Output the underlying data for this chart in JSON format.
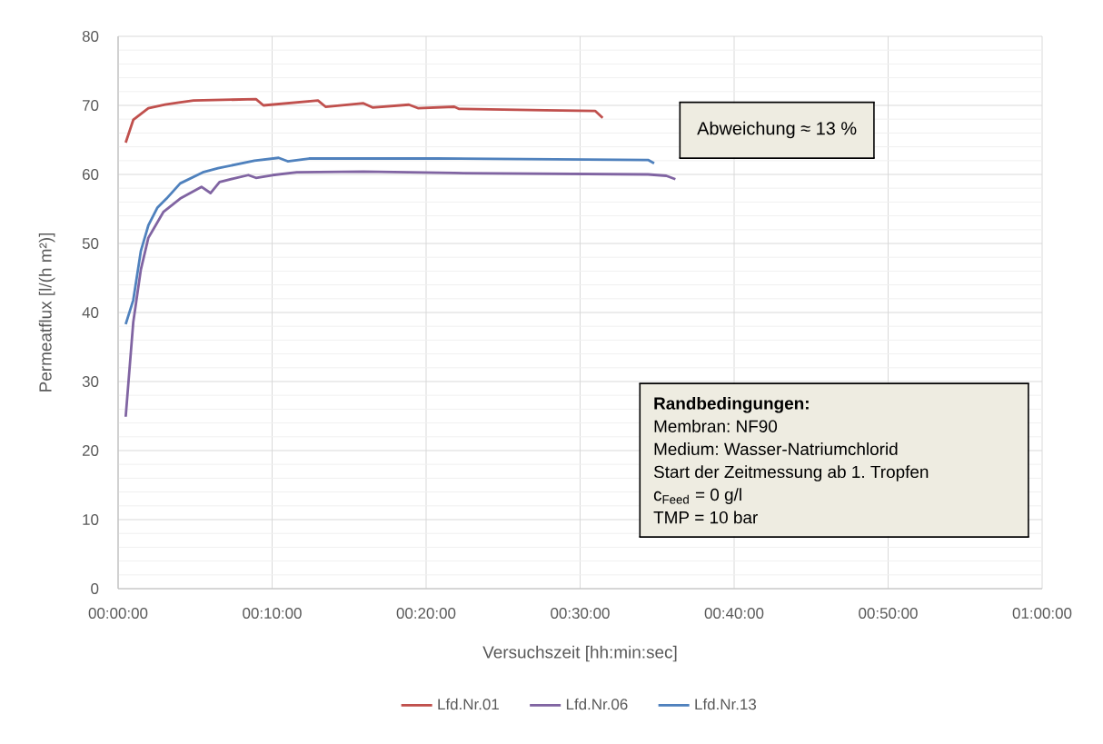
{
  "chart_data": {
    "type": "line",
    "xlabel": "Versuchszeit [hh:min:sec]",
    "ylabel": "Permeatflux [l/(h m²)]",
    "xlim": [
      0,
      1
    ],
    "ylim": [
      0,
      80
    ],
    "xticks": [
      {
        "value": 0,
        "label": "00:00:00"
      },
      {
        "value": 0.16667,
        "label": "00:10:00"
      },
      {
        "value": 0.33333,
        "label": "00:20:00"
      },
      {
        "value": 0.5,
        "label": "00:30:00"
      },
      {
        "value": 0.66667,
        "label": "00:40:00"
      },
      {
        "value": 0.83333,
        "label": "00:50:00"
      },
      {
        "value": 1,
        "label": "01:00:00"
      }
    ],
    "yticks": [
      0,
      10,
      20,
      30,
      40,
      50,
      60,
      70,
      80
    ],
    "grid": true,
    "legend": "bottom",
    "marker": "none",
    "line_style": "solid",
    "annotations": [
      "Abweichung ≈ 13 %",
      "Randbedingungen:",
      "Membran: NF90",
      "Medium: Wasser-Natriumchlorid",
      "Start der Zeitmessung ab 1. Tropfen",
      "c$_{Feed}$ = 0 g/l",
      "TMP = 10 bar"
    ],
    "series": [
      {
        "name": "Lfd.Nr.01",
        "color": "#c0504d",
        "x": [
          0.0082,
          0.0164,
          0.0327,
          0.0508,
          0.0656,
          0.0816,
          0.1492,
          0.1573,
          0.2163,
          0.2245,
          0.2655,
          0.2753,
          0.3147,
          0.3245,
          0.3638,
          0.3687,
          0.4621,
          0.5162,
          0.5244
        ],
        "values": [
          64.6,
          67.9,
          69.6,
          70.1,
          70.4,
          70.7,
          70.9,
          70.0,
          70.7,
          69.8,
          70.3,
          69.7,
          70.1,
          69.6,
          69.8,
          69.5,
          69.3,
          69.2,
          68.2
        ]
      },
      {
        "name": "Lfd.Nr.06",
        "color": "#8064a2",
        "x": [
          0.0082,
          0.0164,
          0.0246,
          0.0327,
          0.0492,
          0.0672,
          0.0902,
          0.1,
          0.1098,
          0.1246,
          0.1409,
          0.1492,
          0.1672,
          0.1934,
          0.2655,
          0.3638,
          0.5735,
          0.5932,
          0.6031
        ],
        "values": [
          24.9,
          38.6,
          46.2,
          50.8,
          54.6,
          56.5,
          58.2,
          57.3,
          58.9,
          59.4,
          59.9,
          59.5,
          59.9,
          60.3,
          60.4,
          60.2,
          60.0,
          59.8,
          59.3
        ]
      },
      {
        "name": "Lfd.Nr.13",
        "color": "#4f81bd",
        "x": [
          0.0082,
          0.0164,
          0.0246,
          0.0327,
          0.0426,
          0.0524,
          0.0672,
          0.0917,
          0.1082,
          0.1475,
          0.1737,
          0.1835,
          0.2065,
          0.3441,
          0.5735,
          0.5801
        ],
        "values": [
          38.3,
          41.8,
          48.9,
          52.6,
          55.2,
          56.5,
          58.7,
          60.3,
          60.9,
          62.0,
          62.4,
          61.9,
          62.3,
          62.3,
          62.1,
          61.6
        ]
      }
    ]
  }
}
